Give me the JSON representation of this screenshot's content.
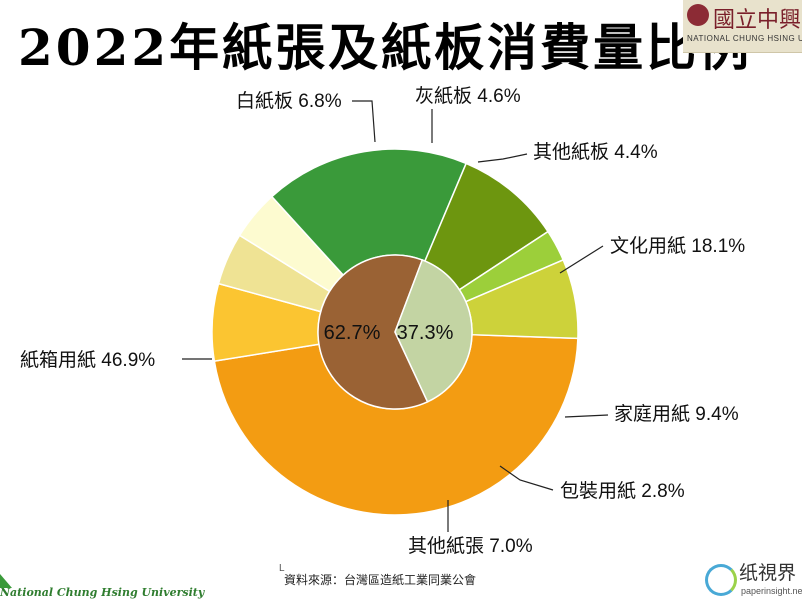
{
  "page": {
    "title": "2022年紙張及紙板消費量比例",
    "source": "資料來源：台灣區造紙工業同業公會",
    "source_mark": "L",
    "university_logo": {
      "cn": "國立中興大",
      "en": "NATIONAL CHUNG HSING UNIVE"
    },
    "bottom_left_text": "National Chung Hsing University",
    "watermark": {
      "cn": "纸視界",
      "en": "paperinsight.net"
    }
  },
  "chart_data": {
    "type": "pie",
    "variant": "donut-nested",
    "title": "2022年紙張及紙板消費量比例",
    "inner": [
      {
        "label": "62.7%",
        "value": 62.7,
        "color": "#9a6234"
      },
      {
        "label": "37.3%",
        "value": 37.3,
        "color": "#c3d4a3"
      }
    ],
    "outer": [
      {
        "name": "紙箱用紙",
        "label": "紙箱用紙 46.9%",
        "value": 46.9,
        "color": "#f39c12"
      },
      {
        "name": "白紙板",
        "label": "白紙板 6.8%",
        "value": 6.8,
        "color": "#fbc531"
      },
      {
        "name": "灰紙板",
        "label": "灰紙板 4.6%",
        "value": 4.6,
        "color": "#efe394"
      },
      {
        "name": "其他紙板",
        "label": "其他紙板 4.4%",
        "value": 4.4,
        "color": "#fdfbd0"
      },
      {
        "name": "文化用紙",
        "label": "文化用紙 18.1%",
        "value": 18.1,
        "color": "#3a9a3a"
      },
      {
        "name": "家庭用紙",
        "label": "家庭用紙 9.4%",
        "value": 9.4,
        "color": "#6d960f"
      },
      {
        "name": "包裝用紙",
        "label": "包裝用紙 2.8%",
        "value": 2.8,
        "color": "#9ccf3a"
      },
      {
        "name": "其他紙張",
        "label": "其他紙張 7.0%",
        "value": 7.0,
        "color": "#cdd23a"
      }
    ],
    "legend": "none"
  }
}
